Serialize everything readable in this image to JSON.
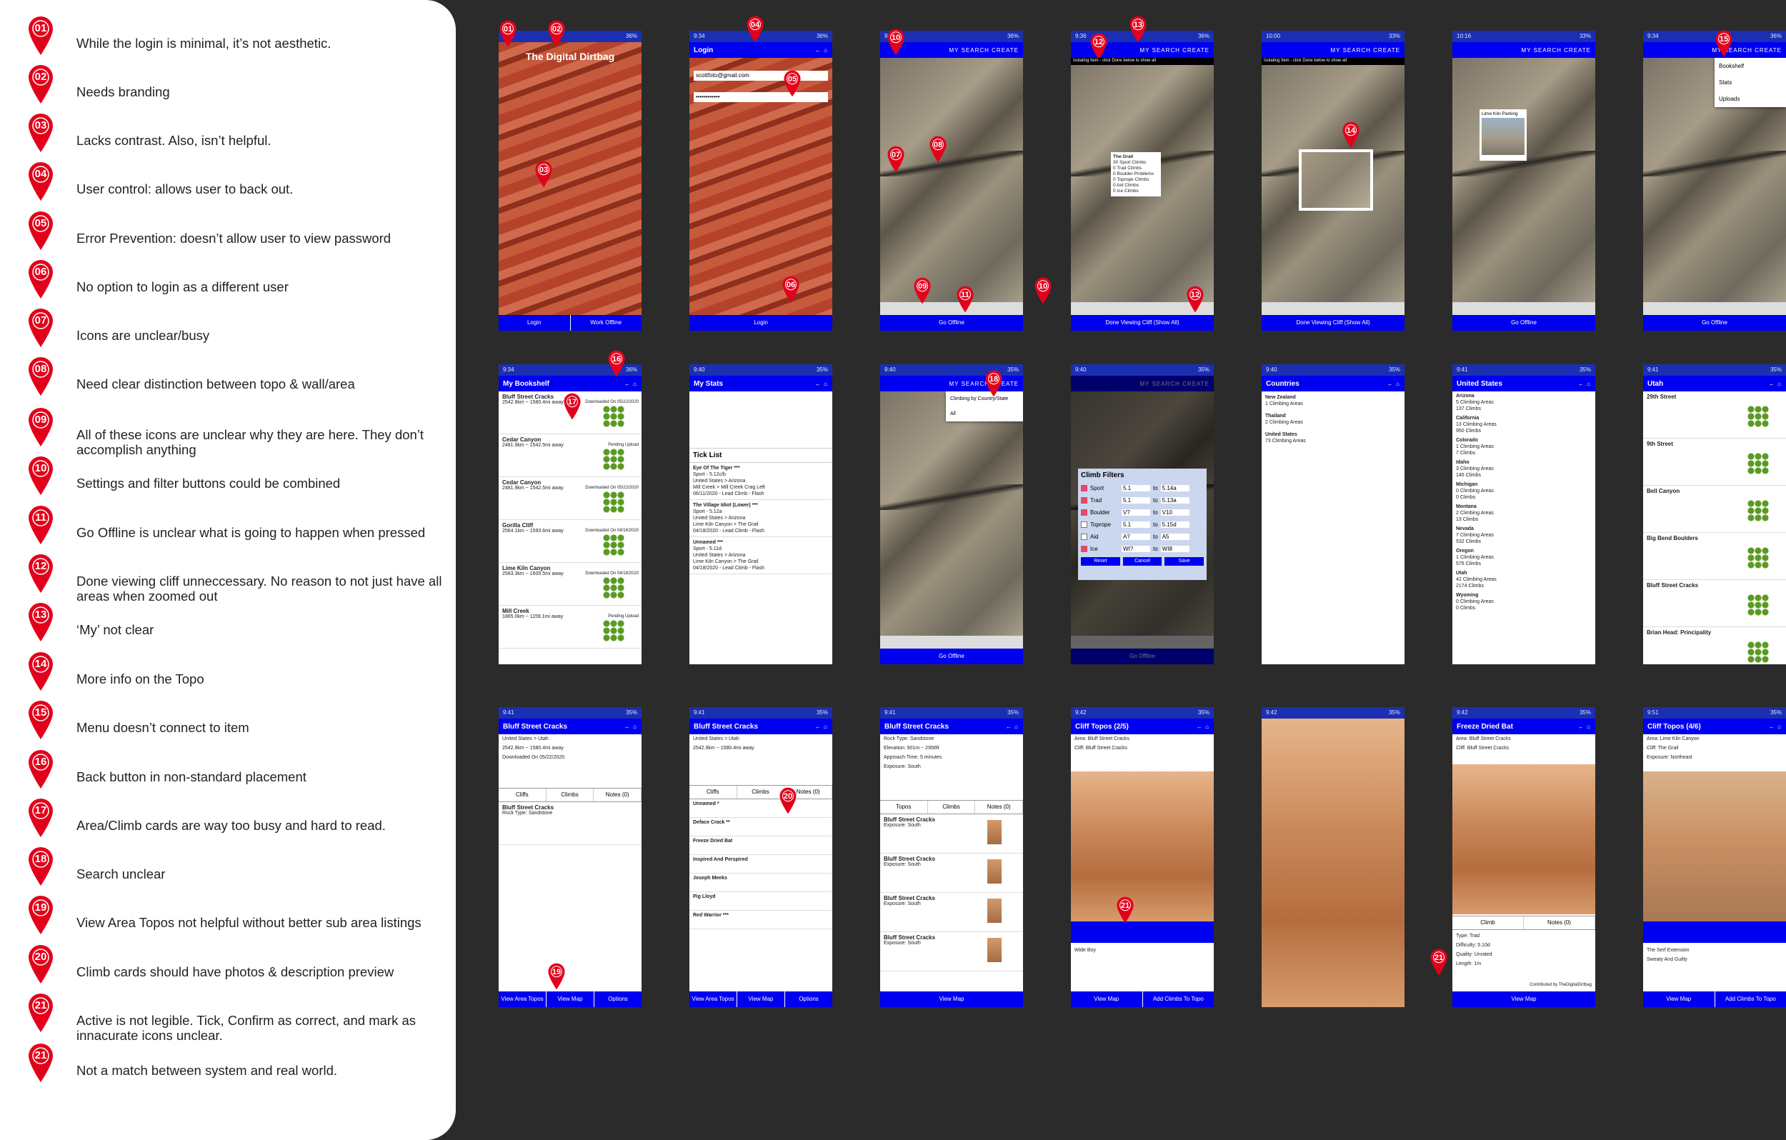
{
  "legend": [
    {
      "num": "01",
      "text": "While the login is minimal, it’s not aesthetic."
    },
    {
      "num": "02",
      "text": "Needs branding"
    },
    {
      "num": "03",
      "text": "Lacks contrast. Also, isn’t helpful."
    },
    {
      "num": "04",
      "text": "User control: allows user to back out."
    },
    {
      "num": "05",
      "text": "Error Prevention: doesn’t allow user to view password"
    },
    {
      "num": "06",
      "text": "No option to login as a different user"
    },
    {
      "num": "07",
      "text": "Icons are unclear/busy"
    },
    {
      "num": "08",
      "text": "Need clear distinction between topo & wall/area"
    },
    {
      "num": "09",
      "text": "All of these icons are unclear why they are here. They don’t accomplish anything"
    },
    {
      "num": "10",
      "text": "Settings and filter buttons could be combined"
    },
    {
      "num": "11",
      "text": "Go Offline is unclear what is going to happen when pressed"
    },
    {
      "num": "12",
      "text": "Done viewing cliff unneccessary. No reason to not just have all areas when zoomed out"
    },
    {
      "num": "13",
      "text": "‘My’ not clear"
    },
    {
      "num": "14",
      "text": "More info on the Topo"
    },
    {
      "num": "15",
      "text": "Menu doesn’t connect to item"
    },
    {
      "num": "16",
      "text": "Back button in non-standard placement"
    },
    {
      "num": "17",
      "text": "Area/Climb cards are way too busy and hard to read."
    },
    {
      "num": "18",
      "text": "Search unclear"
    },
    {
      "num": "19",
      "text": "View Area Topos not helpful without better sub area listings"
    },
    {
      "num": "20",
      "text": "Climb cards should have photos & description preview"
    },
    {
      "num": "21",
      "text": "Active is not legible. Tick, Confirm as correct, and mark as innacurate icons unclear."
    },
    {
      "num": "21",
      "text": "Not a match between system and real world."
    }
  ],
  "colors": {
    "pin": "#e3001b",
    "appbar": "#0000f0",
    "statusbar": "#1b2fb3"
  },
  "screens": {
    "login": {
      "title": "The Digital Dirtbag",
      "login": "Login",
      "offline": "Work Offline"
    },
    "login2": {
      "title": "Login",
      "email": "scottfoto@gmail.com",
      "password": "••••••••••••",
      "button": "Login"
    },
    "map": {
      "menu": "MY   SEARCH   CREATE",
      "offline": "Go Offline",
      "done": "Done Viewing Cliff (Show All)",
      "isolating": "Isolating Item - click Done below to show all",
      "parking": "Lime Kiln Parking",
      "grail": "The Grail",
      "grail_info": "30 Sport Climbs\n0 Trad Climbs\n0 Boulder Problems\n0 Toprope Climbs\n0 Aid Climbs\n0 Ice Climbs"
    },
    "menu": [
      "Bookshelf",
      "Stats",
      "Uploads"
    ],
    "bookshelf": {
      "title": "My Bookshelf",
      "cards": [
        {
          "name": "Bluff Street Cracks",
          "dist": "2542.9km ~ 1580.4mi away",
          "status": "Downloaded On 05/22/2020"
        },
        {
          "name": "Cedar Canyon",
          "dist": "2481.9km ~ 1542.5mi away",
          "status": "Pending Upload"
        },
        {
          "name": "Cedar Canyon",
          "dist": "2481.9km ~ 1542.5mi away",
          "status": "Downloaded On 05/22/2020"
        },
        {
          "name": "Gorilla Cliff",
          "dist": "2564.1km ~ 1593.6mi away",
          "status": "Downloaded On 04/16/2020"
        },
        {
          "name": "Lime Kiln Canyon",
          "dist": "2583.3km ~ 1605.5mi away",
          "status": "Downloaded On 04/18/2020"
        },
        {
          "name": "Mill Creek",
          "dist": "1865.0km ~ 1159.1mi away",
          "status": "Pending Upload"
        }
      ]
    },
    "stats": {
      "title": "My Stats",
      "tick": "Tick List",
      "items": [
        {
          "name": "Eye Of The Tiger ***",
          "l1": "Sport - 5.12c/b",
          "l2": "United States > Arizona",
          "l3": "Mill Creek > Mill Creek Crag Left",
          "l4": "06/11/2020 - Lead Climb - Flash"
        },
        {
          "name": "The Village Idiot (Lower) ***",
          "l1": "Sport - 5.12a",
          "l2": "United States > Arizona",
          "l3": "Lime Kiln Canyon > The Grail",
          "l4": "04/18/2020 - Lead Climb - Flash"
        },
        {
          "name": "Unnamed ***",
          "l1": "Sport - 5.11d",
          "l2": "United States > Arizona",
          "l3": "Lime Kiln Canyon > The Grail",
          "l4": "04/18/2020 - Lead Climb - Flash"
        }
      ]
    },
    "search": {
      "opt1": "Climbing by Country/State",
      "opt2": "All"
    },
    "filters": {
      "title": "Climb Filters",
      "rows": [
        {
          "k": "Sport",
          "a": "5.1",
          "b": "5.14a",
          "on": true
        },
        {
          "k": "Trad",
          "a": "5.1",
          "b": "5.13a",
          "on": true
        },
        {
          "k": "Boulder",
          "a": "V?",
          "b": "V10",
          "on": true
        },
        {
          "k": "Toprope",
          "a": "5.1",
          "b": "5.15d",
          "on": false
        },
        {
          "k": "Aid",
          "a": "A?",
          "b": "A5",
          "on": false
        },
        {
          "k": "Ice",
          "a": "WI?",
          "b": "WI8",
          "on": true
        }
      ],
      "reset": "Reset",
      "cancel": "Cancel",
      "save": "Save"
    },
    "countries": {
      "title": "Countries",
      "items": [
        [
          "New Zealand",
          "1 Climbing Areas"
        ],
        [
          "Thailand",
          "2 Climbing Areas"
        ],
        [
          "United States",
          "73 Climbing Areas"
        ]
      ]
    },
    "states": {
      "title": "United States",
      "items": [
        [
          "Arizona",
          "5 Climbing Areas",
          "137 Climbs"
        ],
        [
          "California",
          "13 Climbing Areas",
          "950 Climbs"
        ],
        [
          "Colorado",
          "1 Climbing Areas",
          "7 Climbs"
        ],
        [
          "Idaho",
          "3 Climbing Areas",
          "145 Climbs"
        ],
        [
          "Michigan",
          "0 Climbing Areas",
          "0 Climbs"
        ],
        [
          "Montana",
          "2 Climbing Areas",
          "13 Climbs"
        ],
        [
          "Nevada",
          "7 Climbing Areas",
          "532 Climbs"
        ],
        [
          "Oregon",
          "1 Climbing Areas",
          "576 Climbs"
        ],
        [
          "Utah",
          "42 Climbing Areas",
          "2174 Climbs"
        ],
        [
          "Wyoming",
          "0 Climbing Areas",
          "0 Climbs"
        ]
      ]
    },
    "utah": {
      "title": "Utah",
      "items": [
        "29th Street",
        "9th Street",
        "Bell Canyon",
        "Big Bend Boulders",
        "Bluff Street Cracks",
        "Brian Head: Principality"
      ]
    },
    "bluff": {
      "title": "Bluff Street Cracks",
      "path": "United States > Utah",
      "dist": "2542.9km ~ 1580.4mi away",
      "dl": "Downloaded On 05/22/2020",
      "tabs": [
        "Cliffs",
        "Climbs",
        "Notes (0)"
      ],
      "btns": [
        "View Area Topos",
        "View Map",
        "Options"
      ]
    },
    "climbs": [
      "Unnamed *",
      "Deface Crack **",
      "Freeze Dried Bat",
      "Inspired And Perspired",
      "Joseph Meeks",
      "Pig Lloyd",
      "Red Warrior ***"
    ],
    "cliff": {
      "rock": "Rock Type: Sandstone",
      "elev": "Elevation: 901m ~ 2956ft",
      "approach": "Approach Time: 5 minutes",
      "exposure": "Exposure: South",
      "tabs": [
        "Topos",
        "Climbs",
        "Notes (0)"
      ],
      "btn": "View Map"
    },
    "topos": {
      "title": "Cliff Topos (2/5)",
      "title2": "Cliff Topos (4/6)",
      "area": "Area: Bluff Street Cracks",
      "cliff": "Cliff: Bluff Street Cracks",
      "add": "Add Climbs To Topo",
      "view": "View Map",
      "climb": "Wide Boy"
    },
    "bat": {
      "title": "Freeze Dried Bat",
      "type": "Type: Trad",
      "diff": "Difficulty: 5.10d",
      "quality": "Quality: Unrated",
      "length": "Length: 1m",
      "tabs": [
        "Climb",
        "Notes (0)"
      ],
      "credit": "Contributed by TheDigitalDirtbag"
    },
    "grail": {
      "area": "Area: Lime Kiln Canyon",
      "cliff": "Cliff: The Grail",
      "exposure": "Exposure: Northeast",
      "c1": "The Serf Extension",
      "c2": "Sweaty And Guilty"
    }
  }
}
